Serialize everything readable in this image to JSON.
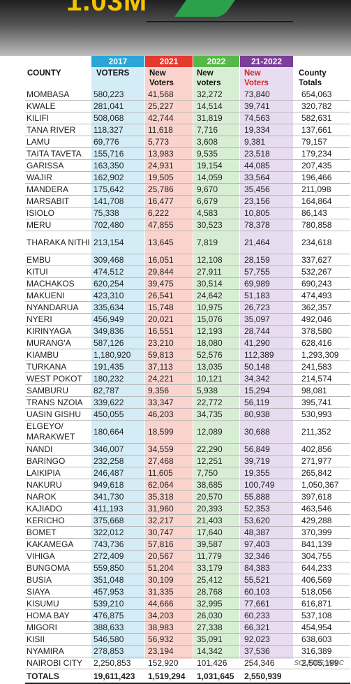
{
  "banner": {
    "title": "1.03M"
  },
  "header": {
    "year_2017": "2017",
    "year_2021": "2021",
    "year_2022": "2022",
    "year_2122": "21-2022",
    "county": "COUNTY",
    "voters": "VOTERS",
    "new_voters_a": "New",
    "new_voters_b": "Voters",
    "new_voters2_a": "New",
    "new_voters2_b": "voters",
    "new_voters3_a": "New",
    "new_voters3_b": "Voters",
    "totals_a": "County",
    "totals_b": "Totals"
  },
  "rows": [
    [
      "MOMBASA",
      "580,223",
      "41,568",
      "32,272",
      "73,840",
      "654,063"
    ],
    [
      "KWALE",
      "281,041",
      "25,227",
      "14,514",
      "39,741",
      "320,782"
    ],
    [
      "KILIFI",
      "508,068",
      "42,744",
      "31,819",
      "74,563",
      "582,631"
    ],
    [
      "TANA RIVER",
      "118,327",
      "11,618",
      "7,716",
      "19,334",
      "137,661"
    ],
    [
      "LAMU",
      "69,776",
      "5,773",
      "3,608",
      "9,381",
      "79,157"
    ],
    [
      "TAITA TAVETA",
      "155,716",
      "13,983",
      "9,535",
      "23,518",
      "179,234"
    ],
    [
      "GARISSA",
      "163,350",
      "24,931",
      "19,154",
      "44,085",
      "207,435"
    ],
    [
      "WAJIR",
      "162,902",
      "19,505",
      "14,059",
      "33,564",
      "196,466"
    ],
    [
      "MANDERA",
      "175,642",
      "25,786",
      "9,670",
      "35,456",
      "211,098"
    ],
    [
      "MARSABIT",
      "141,708",
      "16,477",
      "6,679",
      "23,156",
      "164,864"
    ],
    [
      "ISIOLO",
      "75,338",
      "6,222",
      "4,583",
      "10,805",
      "86,143"
    ],
    [
      "MERU",
      "702,480",
      "47,855",
      "30,523",
      "78,378",
      "780,858"
    ],
    [
      "THARAKA NITHI",
      "213,154",
      "13,645",
      "7,819",
      "21,464",
      "234,618"
    ],
    [
      "EMBU",
      "309,468",
      "16,051",
      "12,108",
      "28,159",
      "337,627"
    ],
    [
      "KITUI",
      "474,512",
      "29,844",
      "27,911",
      "57,755",
      "532,267"
    ],
    [
      "MACHAKOS",
      "620,254",
      "39,475",
      "30,514",
      "69,989",
      "690,243"
    ],
    [
      "MAKUENI",
      "423,310",
      "26,541",
      "24,642",
      "51,183",
      "474,493"
    ],
    [
      "NYANDARUA",
      "335,634",
      "15,748",
      "10,975",
      "26,723",
      "362,357"
    ],
    [
      "NYERI",
      "456,949",
      "20,021",
      "15,076",
      "35,097",
      "492,046"
    ],
    [
      "KIRINYAGA",
      "349,836",
      "16,551",
      "12,193",
      "28,744",
      "378,580"
    ],
    [
      "MURANG'A",
      "587,126",
      "23,210",
      "18,080",
      "41,290",
      "628,416"
    ],
    [
      "KIAMBU",
      "1,180,920",
      "59,813",
      "52,576",
      "112,389",
      "1,293,309"
    ],
    [
      "TURKANA",
      "191,435",
      "37,113",
      "13,035",
      "50,148",
      "241,583"
    ],
    [
      "WEST POKOT",
      "180,232",
      "24,221",
      "10,121",
      "34,342",
      "214,574"
    ],
    [
      "SAMBURU",
      "82,787",
      "9,356",
      "5,938",
      "15,294",
      "98,081"
    ],
    [
      "TRANS NZOIA",
      "339,622",
      "33,347",
      "22,772",
      "56,119",
      "395,741"
    ],
    [
      "UASIN GISHU",
      "450,055",
      "46,203",
      "34,735",
      "80,938",
      "530,993"
    ],
    [
      "ELGEYO/ MARAKWET",
      "180,664",
      "18,599",
      "12,089",
      "30,688",
      "211,352"
    ],
    [
      "NANDI",
      "346,007",
      "34,559",
      "22,290",
      "56,849",
      "402,856"
    ],
    [
      "BARINGO",
      "232,258",
      "27,468",
      "12,251",
      "39,719",
      "271,977"
    ],
    [
      "LAIKIPIA",
      "246,487",
      "11,605",
      "7,750",
      "19,355",
      "265,842"
    ],
    [
      "NAKURU",
      "949,618",
      "62,064",
      "38,685",
      "100,749",
      "1,050,367"
    ],
    [
      "NAROK",
      "341,730",
      "35,318",
      "20,570",
      "55,888",
      "397,618"
    ],
    [
      "KAJIADO",
      "411,193",
      "31,960",
      "20,393",
      "52,353",
      "463,546"
    ],
    [
      "KERICHO",
      "375,668",
      "32,217",
      "21,403",
      "53,620",
      "429,288"
    ],
    [
      "BOMET",
      "322,012",
      "30,747",
      "17,640",
      "48,387",
      "370,399"
    ],
    [
      "KAKAMEGA",
      "743,736",
      "57,816",
      "39,587",
      "97,403",
      "841,139"
    ],
    [
      "VIHIGA",
      "272,409",
      "20,567",
      "11,779",
      "32,346",
      "304,755"
    ],
    [
      "BUNGOMA",
      "559,850",
      "51,204",
      "33,179",
      "84,383",
      "644,233"
    ],
    [
      "BUSIA",
      "351,048",
      "30,109",
      "25,412",
      "55,521",
      "406,569"
    ],
    [
      "SIAYA",
      "457,953",
      "31,335",
      "28,768",
      "60,103",
      "518,056"
    ],
    [
      "KISUMU",
      "539,210",
      "44,666",
      "32,995",
      "77,661",
      "616,871"
    ],
    [
      "HOMA BAY",
      "476,875",
      "34,203",
      "26,030",
      "60,233",
      "537,108"
    ],
    [
      "MIGORI",
      "388,633",
      "38,983",
      "27,338",
      "66,321",
      "454,954"
    ],
    [
      "KISII",
      "546,580",
      "56,932",
      "35,091",
      "92,023",
      "638,603"
    ],
    [
      "NYAMIRA",
      "278,853",
      "23,194",
      "14,342",
      "37,536",
      "316,389"
    ],
    [
      "NAIROBI CITY",
      "2,250,853",
      "152,920",
      "101,426",
      "254,346",
      "2,505,199"
    ]
  ],
  "totals": [
    "TOTALS",
    "19,611,423",
    "1,519,294",
    "1,031,645",
    "2,550,939",
    ""
  ],
  "source": "SOURCE: IEBC"
}
